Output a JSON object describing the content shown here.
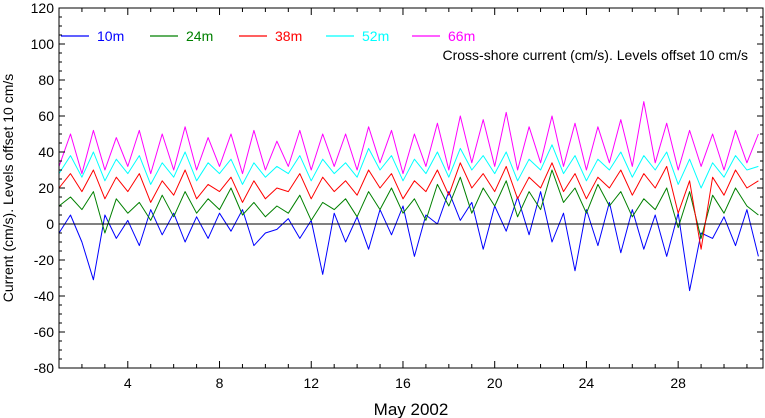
{
  "chart_data": {
    "type": "line",
    "title": "",
    "annotation": "Cross-shore current (cm/s). Levels offset 10 cm/s",
    "xlabel": "May 2002",
    "ylabel": "Current (cm/s). Levels offset 10 cm/s",
    "xlim": [
      1,
      31.7
    ],
    "ylim": [
      -80,
      120
    ],
    "x_ticks": [
      4,
      8,
      12,
      16,
      20,
      24,
      28
    ],
    "x_tick_labels": [
      "4",
      "8",
      "12",
      "16",
      "20",
      "24",
      "28"
    ],
    "y_ticks": [
      -80,
      -60,
      -40,
      -20,
      0,
      20,
      40,
      60,
      80,
      100,
      120
    ],
    "y_tick_labels": [
      "-80",
      "-60",
      "-40",
      "-20",
      "0",
      "20",
      "40",
      "60",
      "80",
      "100",
      "120"
    ],
    "zero_line": true,
    "grid": false,
    "legend_position": "top-left, horizontal",
    "series": [
      {
        "name": "10m",
        "color": "#0000ff",
        "x": [
          1.0,
          1.5,
          2.0,
          2.5,
          3.0,
          3.5,
          4.0,
          4.5,
          5.0,
          5.5,
          6.0,
          6.5,
          7.0,
          7.5,
          8.0,
          8.5,
          9.0,
          9.5,
          10.0,
          10.5,
          11.0,
          11.5,
          12.0,
          12.5,
          13.0,
          13.5,
          14.0,
          14.5,
          15.0,
          15.5,
          16.0,
          16.5,
          17.0,
          17.5,
          18.0,
          18.5,
          19.0,
          19.5,
          20.0,
          20.5,
          21.0,
          21.5,
          22.0,
          22.5,
          23.0,
          23.5,
          24.0,
          24.5,
          25.0,
          25.5,
          26.0,
          26.5,
          27.0,
          27.5,
          28.0,
          28.5,
          29.0,
          29.5,
          30.0,
          30.5,
          31.0,
          31.5
        ],
        "y": [
          -5,
          5,
          -10,
          -31,
          5,
          -8,
          2,
          -12,
          8,
          -6,
          6,
          -10,
          4,
          -8,
          6,
          -4,
          8,
          -12,
          -5,
          -3,
          3,
          -8,
          2,
          -28,
          6,
          -10,
          4,
          -14,
          8,
          -6,
          10,
          -18,
          5,
          0,
          18,
          2,
          12,
          -14,
          10,
          -4,
          15,
          -6,
          18,
          -10,
          6,
          -26,
          8,
          -12,
          12,
          -16,
          8,
          -14,
          5,
          -18,
          6,
          -37,
          -5,
          -8,
          4,
          -12,
          8,
          -18
        ]
      },
      {
        "name": "24m",
        "color": "#008000",
        "x": [
          1.0,
          1.5,
          2.0,
          2.5,
          3.0,
          3.5,
          4.0,
          4.5,
          5.0,
          5.5,
          6.0,
          6.5,
          7.0,
          7.5,
          8.0,
          8.5,
          9.0,
          9.5,
          10.0,
          10.5,
          11.0,
          11.5,
          12.0,
          12.5,
          13.0,
          13.5,
          14.0,
          14.5,
          15.0,
          15.5,
          16.0,
          16.5,
          17.0,
          17.5,
          18.0,
          18.5,
          19.0,
          19.5,
          20.0,
          20.5,
          21.0,
          21.5,
          22.0,
          22.5,
          23.0,
          23.5,
          24.0,
          24.5,
          25.0,
          25.5,
          26.0,
          26.5,
          27.0,
          27.5,
          28.0,
          28.5,
          29.0,
          29.5,
          30.0,
          30.5,
          31.0,
          31.5
        ],
        "y": [
          10,
          15,
          8,
          18,
          -5,
          14,
          6,
          12,
          2,
          16,
          4,
          18,
          6,
          14,
          8,
          20,
          5,
          12,
          4,
          10,
          6,
          16,
          2,
          12,
          8,
          14,
          4,
          18,
          8,
          20,
          6,
          14,
          2,
          22,
          10,
          26,
          6,
          20,
          10,
          24,
          4,
          18,
          8,
          30,
          12,
          20,
          6,
          22,
          10,
          18,
          4,
          14,
          8,
          20,
          -2,
          18,
          -8,
          16,
          6,
          20,
          10,
          5
        ]
      },
      {
        "name": "38m",
        "color": "#ff0000",
        "x": [
          1.0,
          1.5,
          2.0,
          2.5,
          3.0,
          3.5,
          4.0,
          4.5,
          5.0,
          5.5,
          6.0,
          6.5,
          7.0,
          7.5,
          8.0,
          8.5,
          9.0,
          9.5,
          10.0,
          10.5,
          11.0,
          11.5,
          12.0,
          12.5,
          13.0,
          13.5,
          14.0,
          14.5,
          15.0,
          15.5,
          16.0,
          16.5,
          17.0,
          17.5,
          18.0,
          18.5,
          19.0,
          19.5,
          20.0,
          20.5,
          21.0,
          21.5,
          22.0,
          22.5,
          23.0,
          23.5,
          24.0,
          24.5,
          25.0,
          25.5,
          26.0,
          26.5,
          27.0,
          27.5,
          28.0,
          28.5,
          29.0,
          29.5,
          30.0,
          30.5,
          31.0,
          31.5
        ],
        "y": [
          20,
          28,
          18,
          30,
          14,
          26,
          18,
          28,
          12,
          24,
          16,
          30,
          14,
          22,
          18,
          26,
          12,
          24,
          14,
          20,
          18,
          28,
          14,
          26,
          18,
          24,
          16,
          30,
          20,
          28,
          14,
          24,
          18,
          30,
          16,
          34,
          20,
          28,
          18,
          32,
          14,
          26,
          20,
          34,
          18,
          28,
          14,
          26,
          20,
          30,
          16,
          28,
          20,
          32,
          6,
          24,
          -14,
          26,
          16,
          30,
          20,
          24
        ]
      },
      {
        "name": "52m",
        "color": "#00ffff",
        "x": [
          1.0,
          1.5,
          2.0,
          2.5,
          3.0,
          3.5,
          4.0,
          4.5,
          5.0,
          5.5,
          6.0,
          6.5,
          7.0,
          7.5,
          8.0,
          8.5,
          9.0,
          9.5,
          10.0,
          10.5,
          11.0,
          11.5,
          12.0,
          12.5,
          13.0,
          13.5,
          14.0,
          14.5,
          15.0,
          15.5,
          16.0,
          16.5,
          17.0,
          17.5,
          18.0,
          18.5,
          19.0,
          19.5,
          20.0,
          20.5,
          21.0,
          21.5,
          22.0,
          22.5,
          23.0,
          23.5,
          24.0,
          24.5,
          25.0,
          25.5,
          26.0,
          26.5,
          27.0,
          27.5,
          28.0,
          28.5,
          29.0,
          29.5,
          30.0,
          30.5,
          31.0,
          31.5
        ],
        "y": [
          28,
          38,
          26,
          40,
          24,
          36,
          28,
          38,
          22,
          34,
          26,
          40,
          24,
          34,
          28,
          36,
          22,
          34,
          26,
          32,
          28,
          38,
          24,
          36,
          28,
          34,
          26,
          42,
          30,
          38,
          24,
          36,
          28,
          40,
          26,
          42,
          30,
          38,
          28,
          40,
          24,
          36,
          30,
          44,
          28,
          38,
          24,
          36,
          30,
          40,
          26,
          38,
          30,
          40,
          22,
          36,
          20,
          34,
          26,
          38,
          30,
          32
        ]
      },
      {
        "name": "66m",
        "color": "#ff00ff",
        "x": [
          1.0,
          1.5,
          2.0,
          2.5,
          3.0,
          3.5,
          4.0,
          4.5,
          5.0,
          5.5,
          6.0,
          6.5,
          7.0,
          7.5,
          8.0,
          8.5,
          9.0,
          9.5,
          10.0,
          10.5,
          11.0,
          11.5,
          12.0,
          12.5,
          13.0,
          13.5,
          14.0,
          14.5,
          15.0,
          15.5,
          16.0,
          16.5,
          17.0,
          17.5,
          18.0,
          18.5,
          19.0,
          19.5,
          20.0,
          20.5,
          21.0,
          21.5,
          22.0,
          22.5,
          23.0,
          23.5,
          24.0,
          24.5,
          25.0,
          25.5,
          26.0,
          26.5,
          27.0,
          27.5,
          28.0,
          28.5,
          29.0,
          29.5,
          30.0,
          30.5,
          31.0,
          31.5
        ],
        "y": [
          32,
          50,
          28,
          52,
          30,
          48,
          32,
          52,
          28,
          50,
          30,
          54,
          30,
          48,
          32,
          50,
          28,
          52,
          30,
          46,
          32,
          52,
          30,
          50,
          32,
          50,
          30,
          54,
          34,
          52,
          28,
          50,
          32,
          56,
          30,
          60,
          34,
          58,
          32,
          62,
          30,
          54,
          34,
          60,
          32,
          56,
          30,
          54,
          34,
          58,
          32,
          68,
          34,
          56,
          30,
          52,
          32,
          50,
          30,
          52,
          34,
          50
        ]
      }
    ]
  }
}
